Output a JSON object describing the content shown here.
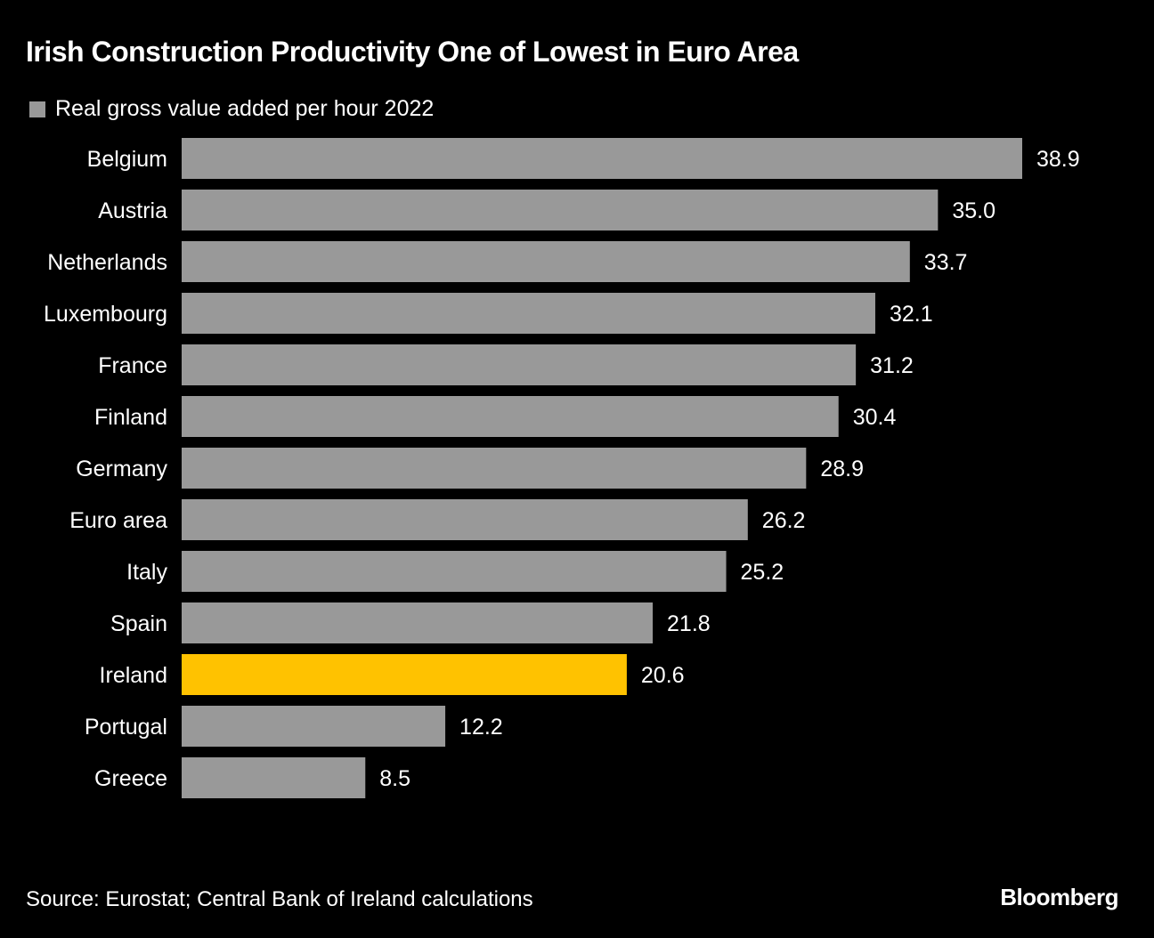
{
  "chart_data": {
    "type": "bar",
    "orientation": "horizontal",
    "title": "Irish Construction Productivity One of Lowest in Euro Area",
    "legend": [
      {
        "label": "Real gross value added per hour 2022",
        "color": "#999999"
      }
    ],
    "legend_position": "top-left",
    "categories": [
      "Belgium",
      "Austria",
      "Netherlands",
      "Luxembourg",
      "France",
      "Finland",
      "Germany",
      "Euro area",
      "Italy",
      "Spain",
      "Ireland",
      "Portugal",
      "Greece"
    ],
    "values": [
      38.9,
      35.0,
      33.7,
      32.1,
      31.2,
      30.4,
      28.9,
      26.2,
      25.2,
      21.8,
      20.6,
      12.2,
      8.5
    ],
    "value_labels": [
      "38.9",
      "35.0",
      "33.7",
      "32.1",
      "31.2",
      "30.4",
      "28.9",
      "26.2",
      "25.2",
      "21.8",
      "20.6",
      "12.2",
      "8.5"
    ],
    "highlight": {
      "category": "Ireland",
      "color": "#FFC200"
    },
    "bar_color": "#999999",
    "xlim": [
      0,
      38.9
    ],
    "grid": false,
    "xlabel": "",
    "ylabel": ""
  },
  "footer": {
    "source": "Source: Eurostat; Central Bank of Ireland calculations",
    "brand": "Bloomberg"
  }
}
